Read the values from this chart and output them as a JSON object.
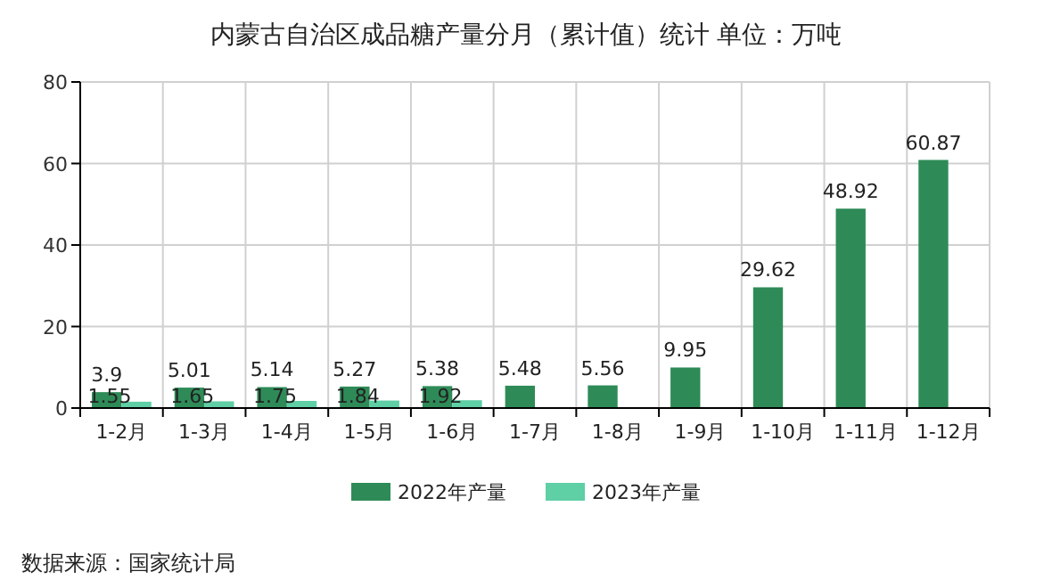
{
  "chart_data": {
    "type": "bar",
    "title": "内蒙古自治区成品糖产量分月（累计值）统计  单位：万吨",
    "categories": [
      "1-2月",
      "1-3月",
      "1-4月",
      "1-5月",
      "1-6月",
      "1-7月",
      "1-8月",
      "1-9月",
      "1-10月",
      "1-11月",
      "1-12月"
    ],
    "series": [
      {
        "name": "2022年产量",
        "color": "#2e8b57",
        "values": [
          3.9,
          5.01,
          5.14,
          5.27,
          5.38,
          5.48,
          5.56,
          9.95,
          29.62,
          48.92,
          60.87
        ]
      },
      {
        "name": "2023年产量",
        "color": "#5fcfa5",
        "values": [
          1.55,
          1.65,
          1.75,
          1.84,
          1.92,
          null,
          null,
          null,
          null,
          null,
          null
        ]
      }
    ],
    "ylim": [
      0,
      80
    ],
    "yticks": [
      0,
      20,
      40,
      60,
      80
    ],
    "grid": true,
    "legend": "bottom",
    "data_labels": true,
    "annotations": [
      "数据来源：国家统计局"
    ]
  }
}
